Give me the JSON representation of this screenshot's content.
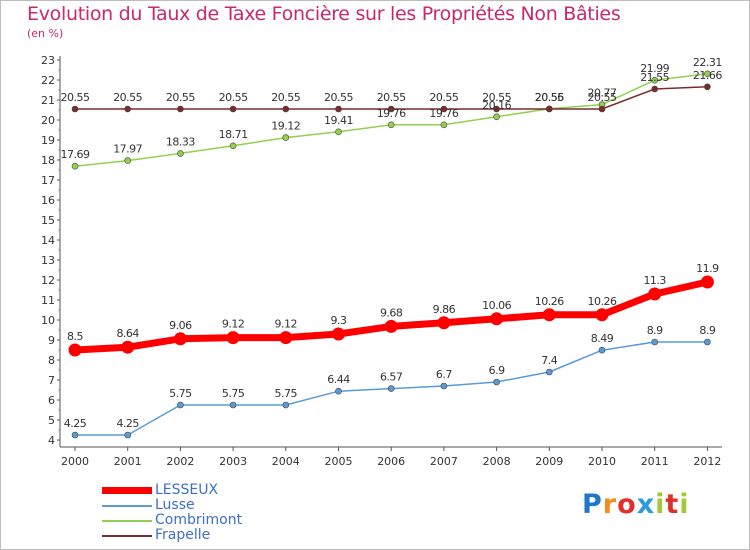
{
  "chart_data": {
    "type": "line",
    "title": "Evolution du Taux de Taxe Foncière sur les Propriétés Non Bâties",
    "subtitle": "(en %)",
    "x": [
      "2000",
      "2001",
      "2002",
      "2003",
      "2004",
      "2005",
      "2006",
      "2007",
      "2008",
      "2009",
      "2010",
      "2011",
      "2012"
    ],
    "ylim": [
      4,
      23
    ],
    "yticks": [
      4,
      5,
      6,
      7,
      8,
      9,
      10,
      11,
      12,
      13,
      14,
      15,
      16,
      17,
      18,
      19,
      20,
      21,
      22,
      23
    ],
    "grid": false,
    "legend_position": "bottom-left",
    "series": [
      {
        "name": "LESSEUX",
        "color": "#ff0000",
        "values": [
          8.5,
          8.64,
          9.06,
          9.12,
          9.12,
          9.3,
          9.68,
          9.86,
          10.06,
          10.26,
          10.26,
          11.3,
          11.9
        ],
        "labels": [
          "8.5",
          "8.64",
          "9.06",
          "9.12",
          "9.12",
          "9.3",
          "9.68",
          "9.86",
          "10.06",
          "10.26",
          "10.26",
          "11.3",
          "11.9"
        ]
      },
      {
        "name": "Lusse",
        "color": "#5b9bd5",
        "values": [
          4.25,
          4.25,
          5.75,
          5.75,
          5.75,
          6.44,
          6.57,
          6.7,
          6.9,
          7.4,
          8.49,
          8.9,
          8.9
        ],
        "labels": [
          "4.25",
          "4.25",
          "5.75",
          "5.75",
          "5.75",
          "6.44",
          "6.57",
          "6.7",
          "6.9",
          "7.4",
          "8.49",
          "8.9",
          "8.9"
        ]
      },
      {
        "name": "Combrimont",
        "color": "#92d050",
        "values": [
          17.69,
          17.97,
          18.33,
          18.71,
          19.12,
          19.41,
          19.76,
          19.76,
          20.16,
          20.56,
          20.77,
          21.99,
          22.31
        ],
        "labels": [
          "17.69",
          "17.97",
          "18.33",
          "18.71",
          "19.12",
          "19.41",
          "19.76",
          "19.76",
          "20.16",
          "20.56",
          "20.77",
          "21.99",
          "22.31"
        ]
      },
      {
        "name": "Frapelle",
        "color": "#7b2c2c",
        "values": [
          20.55,
          20.55,
          20.55,
          20.55,
          20.55,
          20.55,
          20.55,
          20.55,
          20.55,
          20.55,
          20.55,
          21.55,
          21.66
        ],
        "labels": [
          "20.55",
          "20.55",
          "20.55",
          "20.55",
          "20.55",
          "20.55",
          "20.55",
          "20.55",
          "20.55",
          "20.55",
          "20.55",
          "21.55",
          "21.66"
        ]
      }
    ]
  },
  "logo": {
    "letters": [
      "P",
      "r",
      "o",
      "x",
      "i",
      "t",
      "i"
    ],
    "colors": [
      "#1f77c8",
      "#f28c1e",
      "#e0302a",
      "#2b9be0",
      "#a3c93a",
      "#e0302a",
      "#a3c93a"
    ]
  }
}
